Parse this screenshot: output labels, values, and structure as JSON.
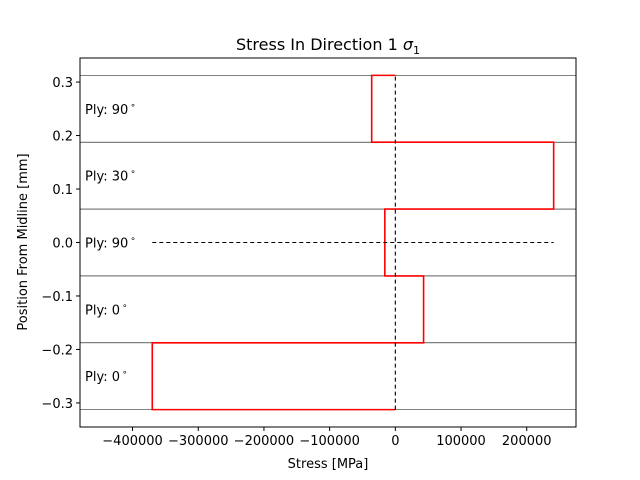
{
  "chart_data": {
    "type": "line",
    "title": "Stress In Direction 1 ",
    "title_symbol": "σ",
    "title_subscript": "1",
    "xlabel": "Stress [MPa]",
    "ylabel": "Position From Midline [mm]",
    "xlim": [
      -480000,
      275000
    ],
    "ylim": [
      -0.345,
      0.345
    ],
    "xticks": [
      -400000,
      -300000,
      -200000,
      -100000,
      0,
      100000,
      200000
    ],
    "xtick_labels": [
      "−400000",
      "−300000",
      "−200000",
      "−100000",
      "0",
      "100000",
      "200000"
    ],
    "yticks": [
      -0.3,
      -0.2,
      -0.1,
      0.0,
      0.1,
      0.2,
      0.3
    ],
    "ytick_labels": [
      "−0.3",
      "−0.2",
      "−0.1",
      "0.0",
      "0.1",
      "0.2",
      "0.3"
    ],
    "ply_boundaries": [
      -0.3125,
      -0.1875,
      -0.0625,
      0.0625,
      0.1875,
      0.3125
    ],
    "plies": [
      {
        "label": "Ply: 0",
        "label_y": -0.25,
        "stress": -370000,
        "z_bottom": -0.3125,
        "z_top": -0.1875
      },
      {
        "label": "Ply: 0",
        "label_y": -0.125,
        "stress": 43000,
        "z_bottom": -0.1875,
        "z_top": -0.0625
      },
      {
        "label": "Ply: 90",
        "label_y": 0.0,
        "stress": -16000,
        "z_bottom": -0.0625,
        "z_top": 0.0625
      },
      {
        "label": "Ply: 30",
        "label_y": 0.125,
        "stress": 241000,
        "z_bottom": 0.0625,
        "z_top": 0.1875
      },
      {
        "label": "Ply: 90",
        "label_y": 0.25,
        "stress": -36000,
        "z_bottom": 0.1875,
        "z_top": 0.3125
      }
    ],
    "degree_symbol": "∘",
    "midline_x_range": [
      -370000,
      241000
    ],
    "zero_line_y_range": [
      -0.3125,
      0.3125
    ],
    "colors": {
      "stress": "#ff0000",
      "reference": "#000000",
      "boundary": "#000000"
    },
    "grid": false
  }
}
